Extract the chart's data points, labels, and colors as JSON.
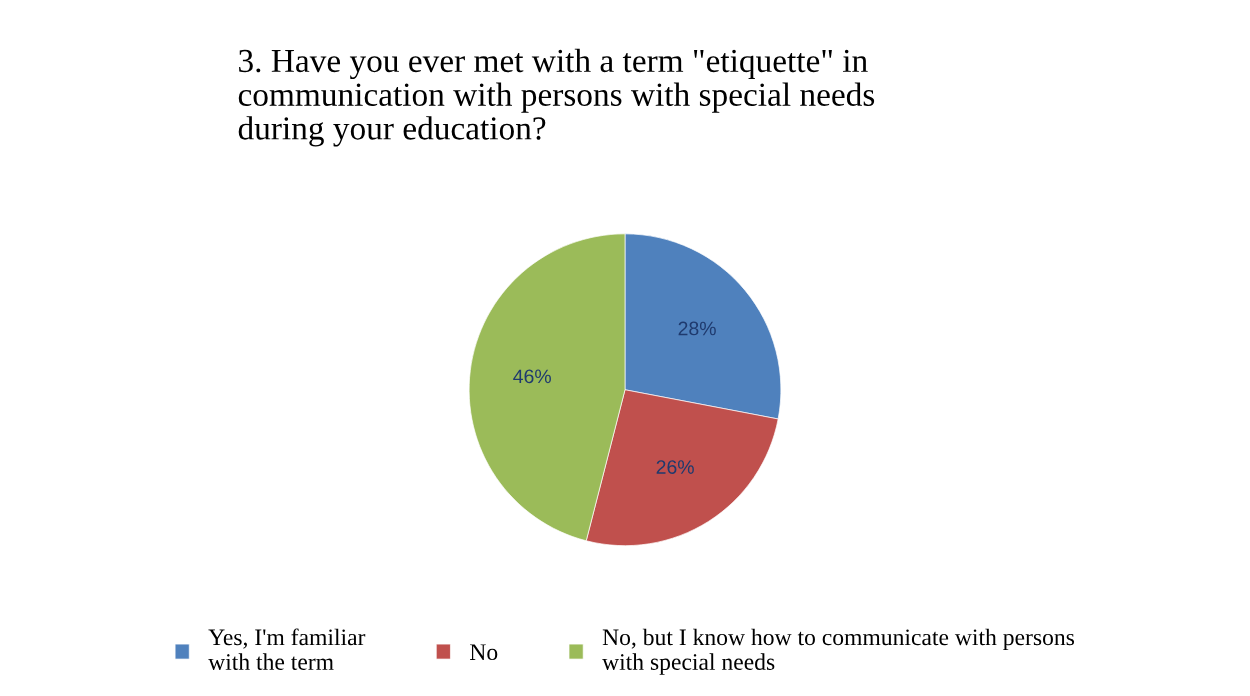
{
  "chart_data": {
    "type": "pie",
    "title": "3. Have you ever met with a term \"etiquette\" in\ncommunication with persons with special needs\nduring your education?",
    "categories": [
      "Yes, I'm familiar\nwith the term",
      "No",
      "No, but I know how to communicate with persons\nwith special needs"
    ],
    "values": [
      28,
      26,
      46
    ],
    "colors": [
      "#4f81bd",
      "#c0504d",
      "#9bbb59"
    ],
    "value_labels": [
      "28%",
      "26%",
      "46%"
    ],
    "legend": "bottom"
  }
}
